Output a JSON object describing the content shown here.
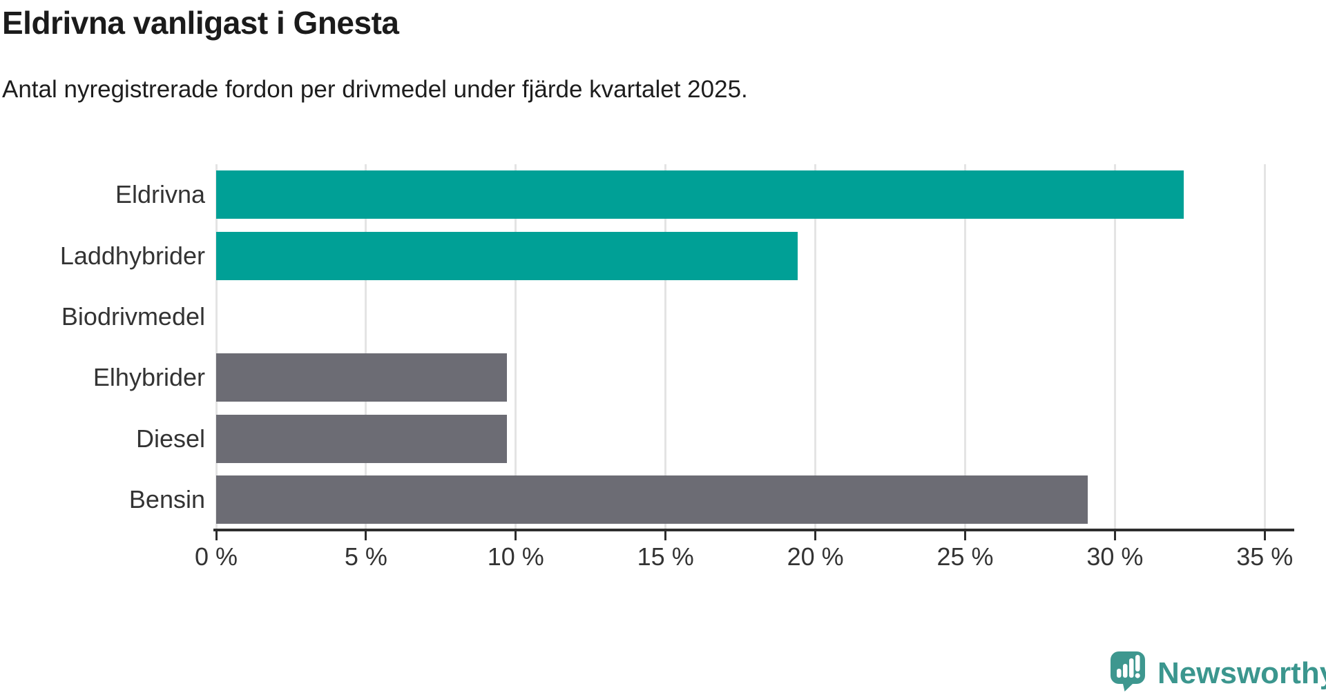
{
  "chart_data": {
    "type": "bar",
    "orientation": "horizontal",
    "title": "Eldrivna vanligast i Gnesta",
    "subtitle": "Antal nyregistrerade fordon per drivmedel under fjärde kvartalet 2025.",
    "categories": [
      "Eldrivna",
      "Laddhybrider",
      "Biodrivmedel",
      "Elhybrider",
      "Diesel",
      "Bensin"
    ],
    "values": [
      32.3,
      19.4,
      0,
      9.7,
      9.7,
      29.1
    ],
    "unit": "%",
    "bar_colors": [
      "#00A096",
      "#00A096",
      "#00A096",
      "#6C6C74",
      "#6C6C74",
      "#6C6C74"
    ],
    "teal_color": "#00A096",
    "gray_color": "#6C6C74",
    "x_ticks": [
      0,
      5,
      10,
      15,
      20,
      25,
      30,
      35
    ],
    "x_tick_labels": [
      "0 %",
      "5 %",
      "10 %",
      "15 %",
      "20 %",
      "25 %",
      "30 %",
      "35 %"
    ],
    "xlim": [
      0,
      35.8
    ],
    "xlabel": "",
    "ylabel": "",
    "grid": true,
    "gridline_color": "#E4E4E4",
    "axis_color": "#2D2D2D",
    "legend": "none"
  },
  "branding": {
    "name": "Newsworthy",
    "icon": "bar-chart-speech-bubble-icon",
    "logo_color": "#3E978F",
    "text_color": "#3B968E"
  }
}
